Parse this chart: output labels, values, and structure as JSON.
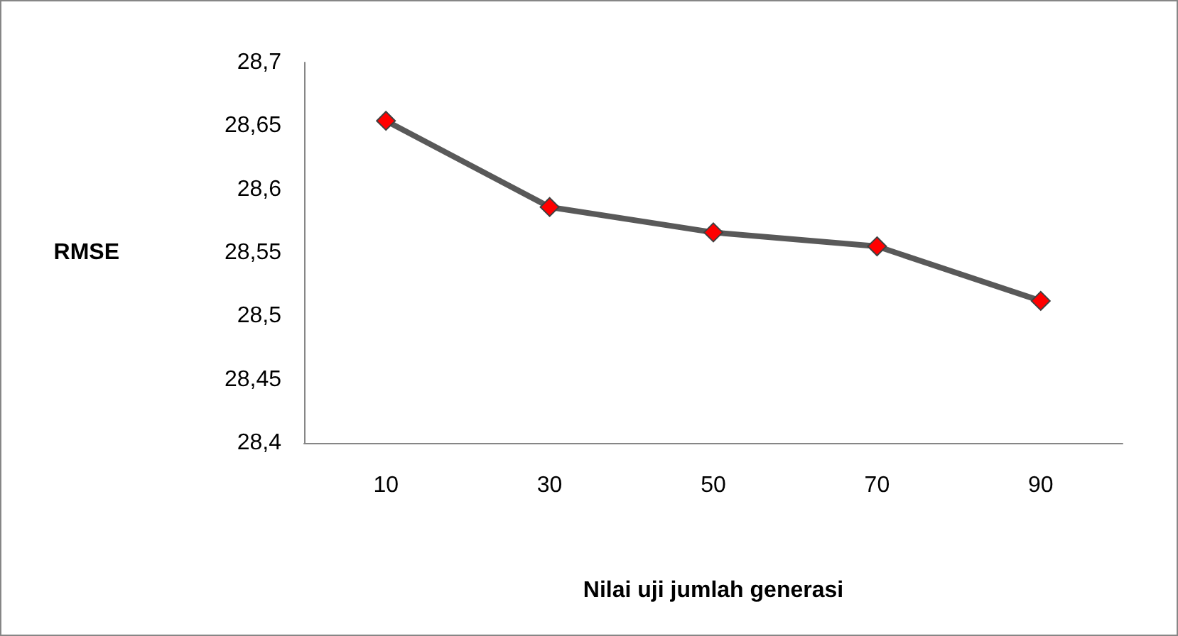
{
  "chart_data": {
    "type": "line",
    "xlabel": "Nilai uji jumlah generasi",
    "ylabel": "RMSE",
    "categories": [
      "10",
      "30",
      "50",
      "70",
      "90"
    ],
    "series": [
      {
        "color": "#595959",
        "values": [
          28.654,
          28.586,
          28.566,
          28.555,
          28.512
        ]
      }
    ],
    "ylim": [
      28.4,
      28.7
    ],
    "yticks": [
      {
        "value": 28.4,
        "label": "28,4"
      },
      {
        "value": 28.45,
        "label": "28,45"
      },
      {
        "value": 28.5,
        "label": "28,5"
      },
      {
        "value": 28.55,
        "label": "28,55"
      },
      {
        "value": 28.6,
        "label": "28,6"
      },
      {
        "value": 28.65,
        "label": "28,65"
      },
      {
        "value": 28.7,
        "label": "28,7"
      }
    ],
    "grid": false,
    "marker": "diamond",
    "line_style": "solid"
  }
}
